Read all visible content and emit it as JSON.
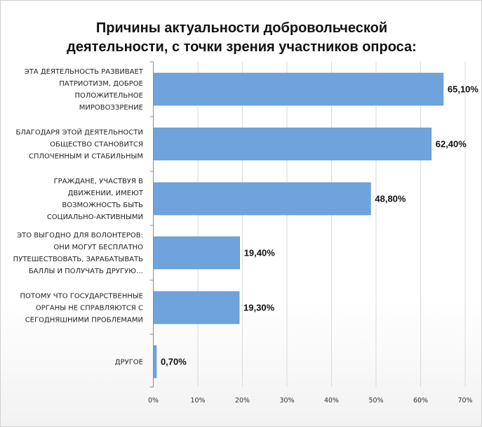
{
  "chart_data": {
    "type": "bar",
    "orientation": "horizontal",
    "title_lines": [
      "Причины актуальности добровольческой",
      "деятельности, с точки зрения участников опроса:"
    ],
    "categories": [
      [
        "ЭТА ДЕЯТЕЛЬНОСТЬ  РАЗВИВАЕТ",
        "ПАТРИОТИЗМ,  ДОБРОЕ",
        "ПОЛОЖИТЕЛЬНОЕ",
        "МИРОВОЗЗРЕНИЕ"
      ],
      [
        "БЛАГОДАРЯ ЭТОЙ ДЕЯТЕЛЬНОСТИ",
        "ОБЩЕСТВО СТАНОВИТСЯ",
        "СПЛОЧЕННЫМ И СТАБИЛЬНЫМ"
      ],
      [
        "ГРАЖДАНЕ,  УЧАСТВУЯ  В",
        "ДВИЖЕНИИ,  ИМЕЮТ",
        "ВОЗМОЖНОСТЬ  БЫТЬ",
        "СОЦИАЛЬНО-АКТИВНЫМИ"
      ],
      [
        "ЭТО ВЫГОДНО ДЛЯ ВОЛОНТЕРОВ:",
        "ОНИ МОГУТ БЕСПЛАТНО",
        "ПУТЕШЕСТВОВАТЬ,  ЗАРАБАТЫВАТЬ",
        "БАЛЛЫ И ПОЛУЧАТЬ ДРУГУЮ…"
      ],
      [
        "ПОТОМУ ЧТО ГОСУДАРСТВЕННЫЕ",
        "ОРГАНЫ НЕ СПРАВЛЯЮТСЯ  С",
        "СЕГОДНЯШНИМИ  ПРОБЛЕМАМИ"
      ],
      [
        "ДРУГОЕ"
      ]
    ],
    "values": [
      65.1,
      62.4,
      48.8,
      19.4,
      19.3,
      0.7
    ],
    "value_labels": [
      "65,10%",
      "62,40%",
      "48,80%",
      "19,40%",
      "19,30%",
      "0,70%"
    ],
    "x_ticks": [
      0,
      10,
      20,
      30,
      40,
      50,
      60,
      70
    ],
    "x_tick_labels": [
      "0%",
      "10%",
      "20%",
      "30%",
      "40%",
      "50%",
      "60%",
      "70%"
    ],
    "xlim": [
      0,
      70
    ],
    "grid": "vertical",
    "bar_color": "#6fa3dc",
    "legend": "none"
  }
}
